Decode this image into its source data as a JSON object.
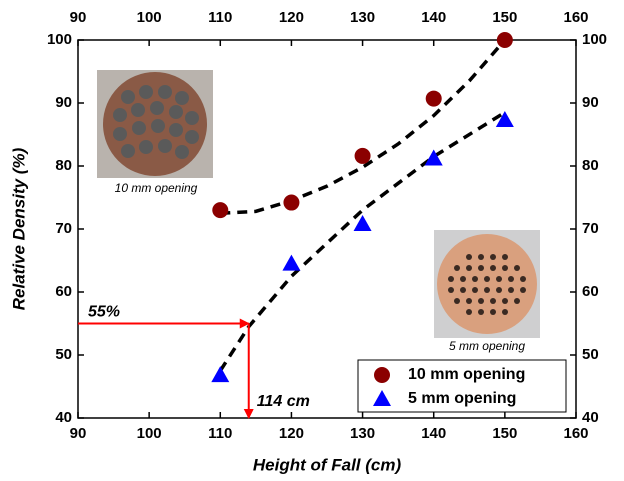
{
  "chart_data": {
    "type": "scatter",
    "xlabel": "Height of Fall (cm)",
    "ylabel": "Relative Density (%)",
    "xlim": [
      90,
      160
    ],
    "xticks": [
      90,
      100,
      110,
      120,
      130,
      140,
      150,
      160
    ],
    "ylim": [
      40,
      100
    ],
    "yticks": [
      40,
      50,
      60,
      70,
      80,
      90,
      100
    ],
    "legend": "lower right",
    "series": [
      {
        "name": "10 mm opening",
        "color": "#8b0000",
        "marker": "circle",
        "x": [
          110,
          120,
          130,
          140,
          150
        ],
        "values": [
          73,
          74.2,
          81.6,
          90.7,
          100
        ],
        "fit_x": [
          110,
          115,
          120,
          125,
          130,
          135,
          140,
          145,
          150
        ],
        "fit_values": [
          72.5,
          72.8,
          74.5,
          76.8,
          79.8,
          83.5,
          88,
          93.5,
          100
        ]
      },
      {
        "name": "5 mm opening",
        "color": "#0000ff",
        "marker": "triangle",
        "x": [
          110,
          120,
          130,
          140,
          150
        ],
        "values": [
          46.8,
          64.5,
          70.8,
          81.2,
          87.3
        ],
        "fit_x": [
          110,
          114,
          120,
          130,
          140,
          150
        ],
        "fit_values": [
          47.5,
          54.5,
          62.5,
          73,
          81.5,
          88.5
        ]
      }
    ],
    "annotations": [
      {
        "text": "55%",
        "y": 55
      },
      {
        "text": "114 cm",
        "x": 114
      }
    ],
    "images": [
      {
        "caption": "10 mm opening"
      },
      {
        "caption": "5 mm opening"
      }
    ]
  }
}
